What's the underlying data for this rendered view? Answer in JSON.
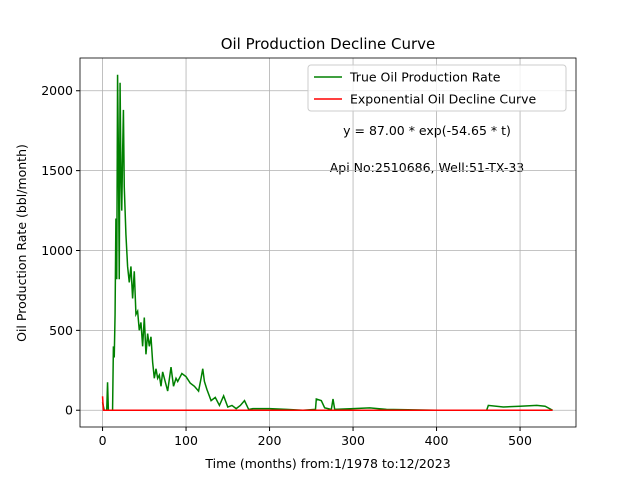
{
  "chart_data": {
    "type": "line",
    "title": "Oil Production Decline Curve",
    "x_label": "Time (months) from:1/1978 to:12/2023",
    "y_label": "Oil Production Rate (bbl/month)",
    "xlim": [
      -27,
      567
    ],
    "ylim": [
      -105,
      2205
    ],
    "xticks": [
      0,
      100,
      200,
      300,
      400,
      500
    ],
    "yticks": [
      0,
      500,
      1000,
      1500,
      2000
    ],
    "grid": true,
    "legend": "upper right",
    "annotations": [
      "y = 87.00 * exp(-54.65 * t)",
      "Api No:2510686, Well:51-TX-33"
    ],
    "series": [
      {
        "name": "True Oil Production Rate",
        "color": "#008000",
        "x": [
          0,
          2,
          5,
          6,
          7,
          12,
          13,
          14,
          15,
          16,
          17,
          18,
          19,
          20,
          21,
          22,
          23,
          24,
          25,
          26,
          28,
          30,
          32,
          34,
          36,
          38,
          40,
          42,
          44,
          46,
          48,
          50,
          52,
          54,
          56,
          58,
          60,
          62,
          64,
          66,
          68,
          70,
          72,
          75,
          78,
          82,
          85,
          88,
          90,
          95,
          100,
          105,
          110,
          115,
          118,
          120,
          122,
          125,
          130,
          135,
          140,
          145,
          150,
          155,
          160,
          165,
          170,
          175,
          180,
          200,
          220,
          240,
          255,
          256,
          262,
          266,
          270,
          274,
          276,
          278,
          300,
          320,
          340,
          400,
          460,
          462,
          480,
          500,
          520,
          530,
          539
        ],
        "values": [
          50,
          0,
          0,
          175,
          0,
          0,
          400,
          330,
          600,
          1200,
          820,
          2100,
          1600,
          820,
          2050,
          1500,
          1250,
          1600,
          1880,
          1400,
          1100,
          900,
          800,
          900,
          700,
          870,
          600,
          620,
          500,
          550,
          400,
          580,
          350,
          480,
          400,
          460,
          300,
          200,
          260,
          200,
          220,
          150,
          240,
          180,
          120,
          270,
          150,
          200,
          180,
          230,
          210,
          170,
          150,
          120,
          200,
          260,
          180,
          130,
          60,
          80,
          30,
          90,
          20,
          30,
          10,
          30,
          60,
          5,
          10,
          10,
          5,
          0,
          5,
          70,
          60,
          15,
          10,
          5,
          70,
          5,
          10,
          15,
          5,
          0,
          0,
          30,
          20,
          25,
          30,
          25,
          0
        ]
      },
      {
        "name": "Exponential Oil Decline Curve",
        "color": "#ff0000",
        "x": [
          0,
          1,
          100,
          200,
          300,
          400,
          539
        ],
        "values": [
          87,
          0,
          0,
          0,
          0,
          0,
          0
        ]
      }
    ]
  }
}
